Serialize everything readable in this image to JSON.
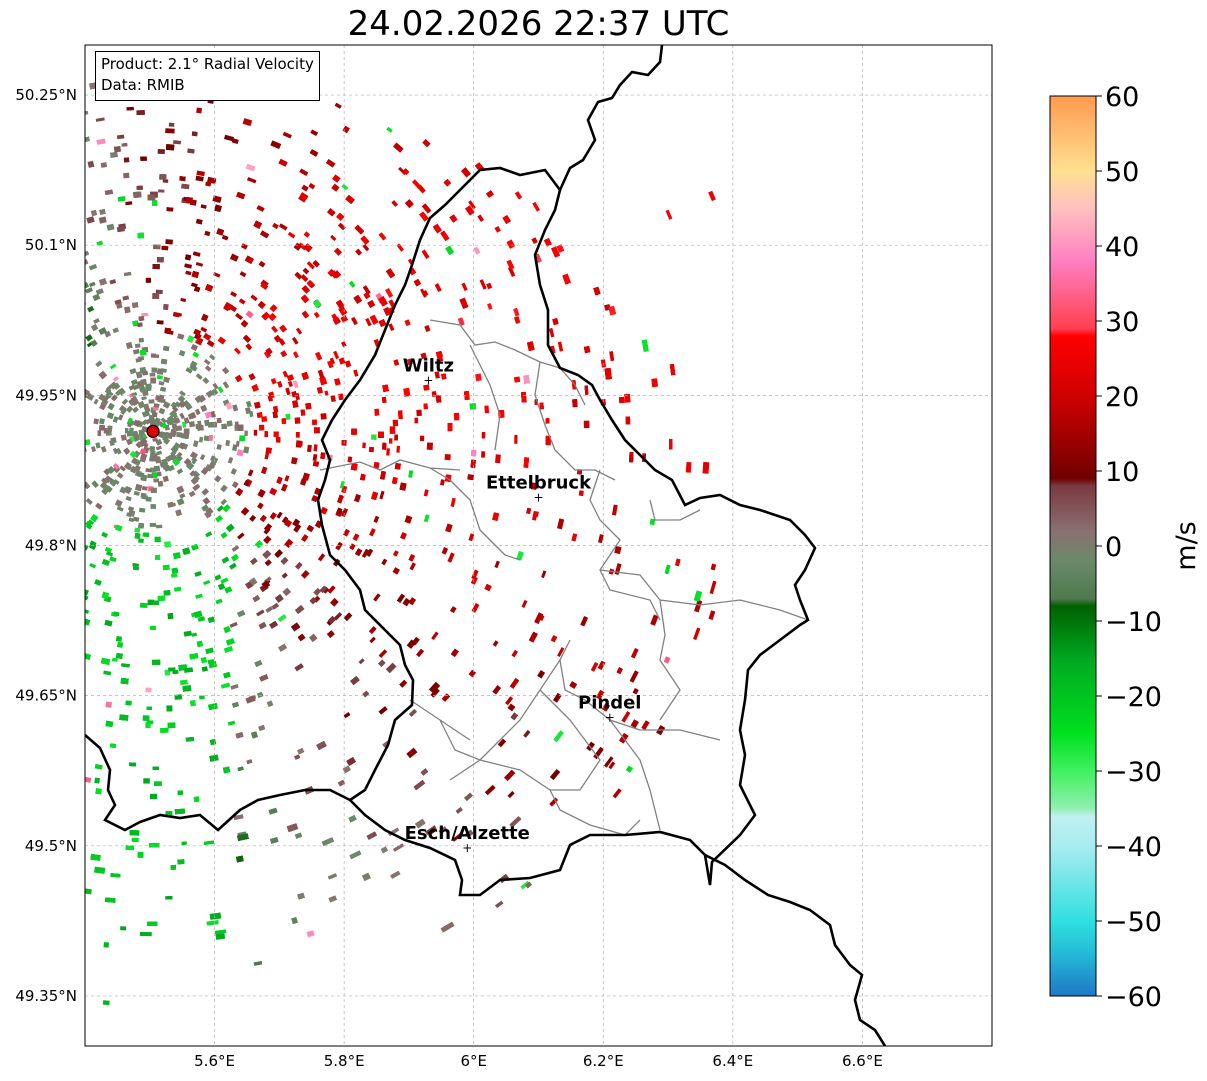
{
  "title": "24.02.2026 22:37 UTC",
  "info_box": {
    "product": "Product: 2.1° Radial Velocity",
    "data": "Data: RMIB"
  },
  "map": {
    "lon_range": [
      5.4,
      6.8
    ],
    "lat_range": [
      49.3,
      50.3
    ],
    "lat_ticks": [
      {
        "value": 50.25,
        "label": "50.25°N"
      },
      {
        "value": 50.1,
        "label": "50.1°N"
      },
      {
        "value": 49.95,
        "label": "49.95°N"
      },
      {
        "value": 49.8,
        "label": "49.8°N"
      },
      {
        "value": 49.65,
        "label": "49.65°N"
      },
      {
        "value": 49.5,
        "label": "49.5°N"
      },
      {
        "value": 49.35,
        "label": "49.35°N"
      }
    ],
    "lon_ticks": [
      {
        "value": 5.6,
        "label": "5.6°E"
      },
      {
        "value": 5.8,
        "label": "5.8°E"
      },
      {
        "value": 6.0,
        "label": "6°E"
      },
      {
        "value": 6.2,
        "label": "6.2°E"
      },
      {
        "value": 6.4,
        "label": "6.4°E"
      },
      {
        "value": 6.6,
        "label": "6.6°E"
      }
    ],
    "gridlines": true,
    "radar_site": {
      "lon": 5.505,
      "lat": 49.914,
      "color": "#e00000"
    },
    "cities": [
      {
        "name": "Wiltz",
        "lon": 5.93,
        "lat": 49.965
      },
      {
        "name": "Ettelbruck",
        "lon": 6.1,
        "lat": 49.848
      },
      {
        "name": "Pindel",
        "lon": 6.21,
        "lat": 49.628
      },
      {
        "name": "Esch/Alzette",
        "lon": 5.99,
        "lat": 49.498
      }
    ]
  },
  "colorbar": {
    "label": "m/s",
    "min": -60,
    "max": 60,
    "ticks": [
      {
        "value": 60,
        "label": "60"
      },
      {
        "value": 50,
        "label": "50"
      },
      {
        "value": 40,
        "label": "40"
      },
      {
        "value": 30,
        "label": "30"
      },
      {
        "value": 20,
        "label": "20"
      },
      {
        "value": 10,
        "label": "10"
      },
      {
        "value": 0,
        "label": "0"
      },
      {
        "value": -10,
        "label": "−10"
      },
      {
        "value": -20,
        "label": "−20"
      },
      {
        "value": -30,
        "label": "−30"
      },
      {
        "value": -40,
        "label": "−40"
      },
      {
        "value": -50,
        "label": "−50"
      },
      {
        "value": -60,
        "label": "−60"
      }
    ],
    "stops": [
      {
        "value": -60,
        "color": "#1f77c4"
      },
      {
        "value": -55,
        "color": "#22b4d6"
      },
      {
        "value": -50,
        "color": "#2fe0e0"
      },
      {
        "value": -40,
        "color": "#a8ecf0"
      },
      {
        "value": -36,
        "color": "#c0f0f0"
      },
      {
        "value": -35,
        "color": "#90f0b0"
      },
      {
        "value": -30,
        "color": "#40f060"
      },
      {
        "value": -25,
        "color": "#00e020"
      },
      {
        "value": -15,
        "color": "#00a820"
      },
      {
        "value": -8,
        "color": "#006000"
      },
      {
        "value": -7,
        "color": "#4e7a4e"
      },
      {
        "value": -2,
        "color": "#6a8a6a"
      },
      {
        "value": 2,
        "color": "#8a7070"
      },
      {
        "value": 8,
        "color": "#7a3a40"
      },
      {
        "value": 9,
        "color": "#700000"
      },
      {
        "value": 20,
        "color": "#d00000"
      },
      {
        "value": 28,
        "color": "#ff0000"
      },
      {
        "value": 29,
        "color": "#ff4050"
      },
      {
        "value": 38,
        "color": "#ff80c0"
      },
      {
        "value": 45,
        "color": "#ffc0c0"
      },
      {
        "value": 50,
        "color": "#ffe090"
      },
      {
        "value": 60,
        "color": "#ff9a50"
      }
    ]
  }
}
